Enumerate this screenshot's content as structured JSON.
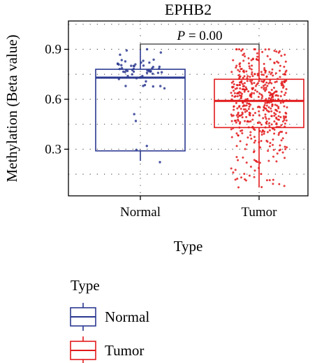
{
  "chart_data": {
    "type": "box",
    "title": "EPHB2",
    "xlabel": "Type",
    "ylabel": "Methylation (Beta value)",
    "categories": [
      "Normal",
      "Tumor"
    ],
    "ylim": [
      0.02,
      1.07
    ],
    "yticks": [
      0.3,
      0.6,
      0.9
    ],
    "yticks_labels": [
      "0.3",
      "0.6",
      "0.9"
    ],
    "grid": true,
    "annotation": {
      "label": "P = 0.00",
      "prefix": "P",
      "value_text": " = 0.00"
    },
    "series": [
      {
        "name": "Normal",
        "color": "#2b3990",
        "box": {
          "whisker_low": 0.23,
          "q1": 0.29,
          "median": 0.73,
          "q3": 0.78,
          "whisker_high": 0.9
        },
        "points_range": [
          0.22,
          0.9
        ],
        "point_count": 60
      },
      {
        "name": "Tumor",
        "color": "#e31a1c",
        "box": {
          "whisker_low": 0.07,
          "q1": 0.43,
          "median": 0.59,
          "q3": 0.72,
          "whisker_high": 0.9
        },
        "points_range": [
          0.07,
          0.9
        ],
        "point_count": 500
      }
    ]
  },
  "legend": {
    "title": "Type",
    "items": [
      {
        "label": "Normal",
        "color": "#2b3990"
      },
      {
        "label": "Tumor",
        "color": "#e31a1c"
      }
    ]
  }
}
